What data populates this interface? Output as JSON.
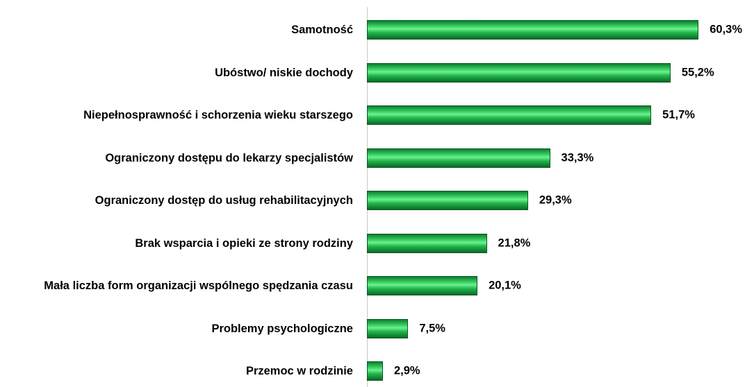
{
  "chart_data": {
    "type": "bar",
    "orientation": "horizontal",
    "categories": [
      "Samotność",
      "Ubóstwo/ niskie dochody",
      "Niepełnosprawność i schorzenia wieku starszego",
      "Ograniczony dostępu do lekarzy specjalistów",
      "Ograniczony dostęp do usług rehabilitacyjnych",
      "Brak wsparcia i opieki ze strony rodziny",
      "Mała liczba form organizacji wspólnego spędzania czasu",
      "Problemy psychologiczne",
      "Przemoc w rodzinie"
    ],
    "values": [
      60.3,
      55.2,
      51.7,
      33.3,
      29.3,
      21.8,
      20.1,
      7.5,
      2.9
    ],
    "value_labels": [
      "60,3%",
      "55,2%",
      "51,7%",
      "33,3%",
      "29,3%",
      "21,8%",
      "20,1%",
      "7,5%",
      "2,9%"
    ],
    "color": "#1db34a",
    "xlim": [
      0,
      70
    ]
  }
}
